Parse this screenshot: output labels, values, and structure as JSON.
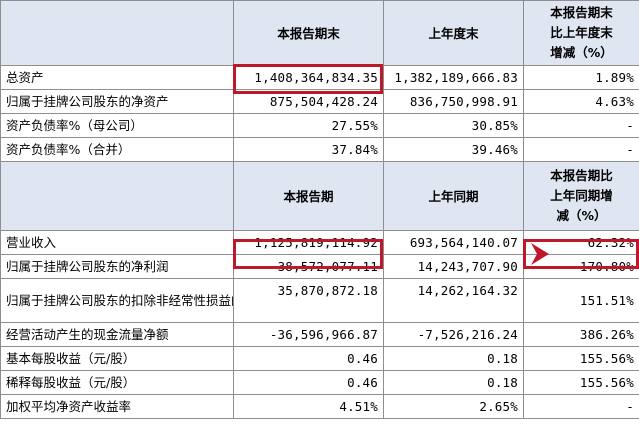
{
  "balance": {
    "headers": [
      "本报告期末",
      "上年度末",
      "本报告期末比上年度末增减（%）"
    ],
    "header_lines_col3": [
      "本报告期末",
      "比上年度末",
      "增减（%）"
    ],
    "rows": [
      {
        "label": "总资产",
        "c1": "1,408,364,834.35",
        "c2": "1,382,189,666.83",
        "c3": "1.89%"
      },
      {
        "label": "归属于挂牌公司股东的净资产",
        "c1": "875,504,428.24",
        "c2": "836,750,998.91",
        "c3": "4.63%"
      },
      {
        "label": "资产负债率%（母公司）",
        "c1": "27.55%",
        "c2": "30.85%",
        "c3": "-"
      },
      {
        "label": "资产负债率%（合并）",
        "c1": "37.84%",
        "c2": "39.46%",
        "c3": "-"
      }
    ]
  },
  "income": {
    "headers": [
      "本报告期",
      "上年同期",
      "本报告期比上年同期增减（%）"
    ],
    "header_lines_col3": [
      "本报告期比",
      "上年同期增",
      "减（%）"
    ],
    "rows": [
      {
        "label": "营业收入",
        "c1": "1,125,819,114.92",
        "c2": "693,564,140.07",
        "c3": "62.32%"
      },
      {
        "label": "归属于挂牌公司股东的净利润",
        "c1": "38,572,077.11",
        "c2": "14,243,707.90",
        "c3": "170.80%"
      },
      {
        "label": "归属于挂牌公司股东的扣除非经常性损益的净利润",
        "c1": "35,870,872.18",
        "c2": "14,262,164.32",
        "c3": "151.51%"
      },
      {
        "label": "经营活动产生的现金流量净额",
        "c1": "-36,596,966.87",
        "c2": "-7,526,216.24",
        "c3": "386.26%"
      },
      {
        "label": "基本每股收益（元/股）",
        "c1": "0.46",
        "c2": "0.18",
        "c3": "155.56%"
      },
      {
        "label": "稀释每股收益（元/股）",
        "c1": "0.46",
        "c2": "0.18",
        "c3": "155.56%"
      },
      {
        "label": "加权平均净资产收益率",
        "c1": "4.51%",
        "c2": "2.65%",
        "c3": "-"
      }
    ]
  },
  "colors": {
    "header_bg": "#dfe6f2",
    "highlight": "#c0182b",
    "border": "#8e8e8e"
  }
}
